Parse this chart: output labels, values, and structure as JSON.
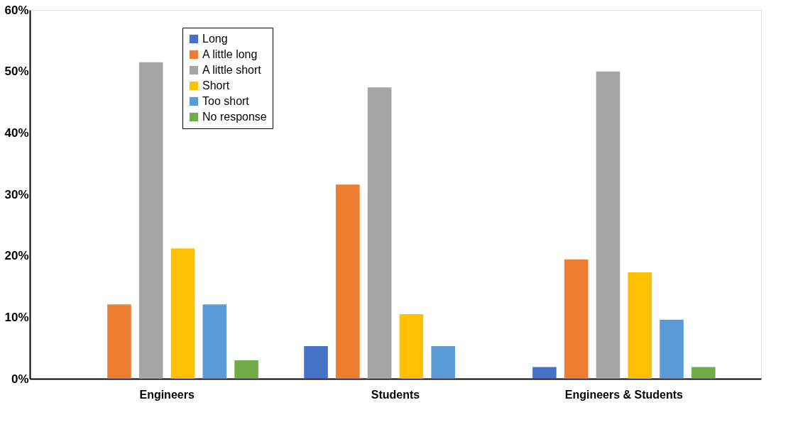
{
  "chart_data": {
    "type": "bar",
    "categories": [
      "Engineers",
      "Students",
      "Engineers & Students"
    ],
    "series": [
      {
        "name": "Long",
        "color": "#4472c4",
        "values": [
          0,
          5.3,
          1.9
        ]
      },
      {
        "name": "A little long",
        "color": "#ed7d31",
        "values": [
          12.1,
          31.6,
          19.4
        ]
      },
      {
        "name": "A little short",
        "color": "#a5a5a5",
        "values": [
          51.5,
          47.4,
          50.0
        ]
      },
      {
        "name": "Short",
        "color": "#ffc000",
        "values": [
          21.2,
          10.5,
          17.3
        ]
      },
      {
        "name": "Too short",
        "color": "#5b9bd5",
        "values": [
          12.1,
          5.3,
          9.6
        ]
      },
      {
        "name": "No response",
        "color": "#70ad47",
        "values": [
          3.0,
          0,
          1.9
        ]
      }
    ],
    "ylim": [
      0,
      60
    ],
    "yticks": [
      {
        "value": 0,
        "label": "0%"
      },
      {
        "value": 10,
        "label": "10%"
      },
      {
        "value": 20,
        "label": "20%"
      },
      {
        "value": 30,
        "label": "30%"
      },
      {
        "value": 40,
        "label": "40%"
      },
      {
        "value": 50,
        "label": "50%"
      },
      {
        "value": 60,
        "label": "60%"
      }
    ],
    "grid": false,
    "legend": "top left"
  }
}
